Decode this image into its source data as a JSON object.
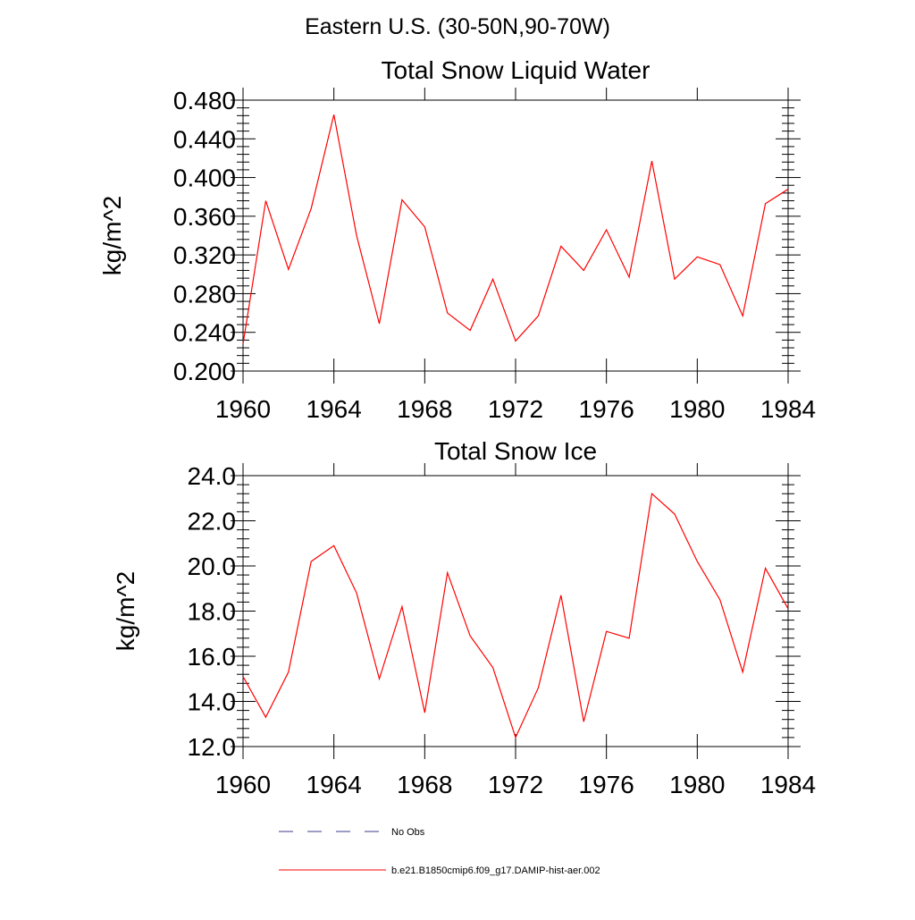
{
  "page": {
    "title": "Eastern U.S. (30-50N,90-70W)"
  },
  "chart_data": [
    {
      "type": "line",
      "title": "Total Snow Liquid Water",
      "ylabel": "kg/m^2",
      "xlabel": "",
      "xlim": [
        1960,
        1984
      ],
      "ylim": [
        0.2,
        0.48
      ],
      "xticks": [
        1960,
        1964,
        1968,
        1972,
        1976,
        1980,
        1984
      ],
      "yticks": [
        0.2,
        0.24,
        0.28,
        0.32,
        0.36,
        0.4,
        0.44,
        0.48
      ],
      "ytick_labels": [
        "0.200",
        "0.240",
        "0.280",
        "0.320",
        "0.360",
        "0.400",
        "0.440",
        "0.480"
      ],
      "x": [
        1960,
        1961,
        1962,
        1963,
        1964,
        1965,
        1966,
        1967,
        1968,
        1969,
        1970,
        1971,
        1972,
        1973,
        1974,
        1975,
        1976,
        1977,
        1978,
        1979,
        1980,
        1981,
        1982,
        1983,
        1984
      ],
      "series": [
        {
          "name": "b.e21.B1850cmip6.f09_g17.DAMIP-hist-aer.002",
          "color": "#ff0000",
          "values": [
            0.228,
            0.376,
            0.305,
            0.368,
            0.465,
            0.34,
            0.249,
            0.377,
            0.349,
            0.26,
            0.242,
            0.295,
            0.231,
            0.257,
            0.329,
            0.304,
            0.346,
            0.297,
            0.417,
            0.295,
            0.318,
            0.31,
            0.257,
            0.373,
            0.388
          ]
        }
      ]
    },
    {
      "type": "line",
      "title": "Total Snow Ice",
      "ylabel": "kg/m^2",
      "xlabel": "",
      "xlim": [
        1960,
        1984
      ],
      "ylim": [
        12.0,
        24.0
      ],
      "xticks": [
        1960,
        1964,
        1968,
        1972,
        1976,
        1980,
        1984
      ],
      "yticks": [
        12,
        14,
        16,
        18,
        20,
        22,
        24
      ],
      "ytick_labels": [
        "12.0",
        "14.0",
        "16.0",
        "18.0",
        "20.0",
        "22.0",
        "24.0"
      ],
      "x": [
        1960,
        1961,
        1962,
        1963,
        1964,
        1965,
        1966,
        1967,
        1968,
        1969,
        1970,
        1971,
        1972,
        1973,
        1974,
        1975,
        1976,
        1977,
        1978,
        1979,
        1980,
        1981,
        1982,
        1983,
        1984
      ],
      "series": [
        {
          "name": "b.e21.B1850cmip6.f09_g17.DAMIP-hist-aer.002",
          "color": "#ff0000",
          "values": [
            15.1,
            13.3,
            15.3,
            20.2,
            20.9,
            18.8,
            15.0,
            18.2,
            13.5,
            19.7,
            16.9,
            15.5,
            12.4,
            14.6,
            18.7,
            13.1,
            17.1,
            16.8,
            23.2,
            22.3,
            20.2,
            18.5,
            15.3,
            19.9,
            18.1
          ]
        }
      ]
    }
  ],
  "legend": [
    {
      "label": "No Obs",
      "style": "dashed",
      "color": "#3a3a8c"
    },
    {
      "label": "b.e21.B1850cmip6.f09_g17.DAMIP-hist-aer.002",
      "style": "solid",
      "color": "#ff0000"
    }
  ]
}
